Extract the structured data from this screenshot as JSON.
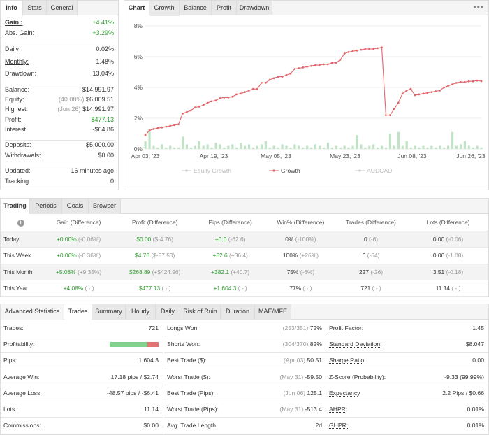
{
  "info_panel": {
    "tabs": [
      "Info",
      "Stats",
      "General"
    ],
    "rows": [
      {
        "label": "Gain :",
        "value": "+4.41%"
      },
      {
        "label": "Abs. Gain:",
        "value": "+3.29%"
      },
      {
        "label": "Daily",
        "value": "0.02%"
      },
      {
        "label": "Monthly:",
        "value": "1.48%"
      },
      {
        "label": "Drawdown:",
        "value": "13.04%"
      },
      {
        "label": "Balance:",
        "value": "$14,991.97"
      },
      {
        "label": "Equity:",
        "value_note": "(40.08%)",
        "value": "$6,009.51"
      },
      {
        "label": "Highest:",
        "value_note": "(Jun 26)",
        "value": "$14,991.97"
      },
      {
        "label": "Profit:",
        "value": "$477.13"
      },
      {
        "label": "Interest",
        "value": "-$64.86"
      },
      {
        "label": "Deposits:",
        "value": "$5,000.00"
      },
      {
        "label": "Withdrawals:",
        "value": "$0.00"
      },
      {
        "label": "Updated:",
        "value": "16 minutes ago"
      },
      {
        "label": "Tracking",
        "value": "0"
      }
    ]
  },
  "chart_panel": {
    "tabs": [
      "Chart",
      "Growth",
      "Balance",
      "Profit",
      "Drawdown"
    ],
    "menu_icon": "ellipsis-icon",
    "legend": [
      "Equity Growth",
      "Growth",
      "AUDCAD"
    ]
  },
  "chart_data": {
    "type": "line",
    "x_ticks": [
      "Apr 03, '23",
      "Apr 19, '23",
      "May 05, '23",
      "May 23, '23",
      "Jun 08, '23",
      "Jun 26, '23"
    ],
    "y_ticks": [
      "0%",
      "2%",
      "4%",
      "6%",
      "8%"
    ],
    "ylim": [
      0,
      8
    ],
    "series": [
      {
        "name": "Growth",
        "values": [
          0.9,
          1.2,
          1.3,
          1.35,
          1.4,
          1.45,
          1.5,
          1.55,
          1.6,
          2.3,
          2.4,
          2.5,
          2.7,
          2.75,
          2.85,
          3.0,
          3.1,
          3.15,
          3.3,
          3.35,
          3.35,
          3.4,
          3.55,
          3.6,
          3.7,
          3.8,
          3.9,
          3.9,
          4.3,
          4.3,
          4.5,
          4.6,
          4.7,
          4.7,
          4.8,
          4.9,
          5.2,
          5.25,
          5.3,
          5.35,
          5.4,
          5.45,
          5.45,
          5.5,
          5.5,
          5.6,
          5.6,
          5.8,
          6.2,
          6.3,
          6.35,
          6.4,
          6.45,
          6.5,
          6.5,
          6.5,
          6.55,
          6.6,
          2.2,
          2.2,
          2.6,
          3.0,
          3.6,
          3.8,
          3.9,
          3.5,
          3.55,
          3.6,
          3.65,
          3.7,
          3.75,
          3.8,
          4.0,
          4.1,
          4.2,
          4.3,
          4.35,
          4.35,
          4.4,
          4.4,
          4.45,
          4.41
        ]
      },
      {
        "name": "AUDCAD",
        "values": [
          0.5,
          1.3,
          0.2,
          0.1,
          0.3,
          0.1,
          0.2,
          0.1,
          0.1,
          0.8,
          0.3,
          0.1,
          0.2,
          0.5,
          0.2,
          0.3,
          0.1,
          0.4,
          0.3,
          0.1,
          0.2,
          0.3,
          0.1,
          0.4,
          0.2,
          0.3,
          0.1,
          0.2,
          0.3,
          0.5,
          0.1,
          0.2,
          0.1,
          0.3,
          0.2,
          0.1,
          0.3,
          0.2,
          0.1,
          0.2,
          0.1,
          0.3,
          0.2,
          0.1,
          0.4,
          0.1,
          0.2,
          0.1,
          0.2,
          0.1,
          0.2,
          0.9,
          0.3,
          0.1,
          0.2,
          0.3,
          0.1,
          0.2,
          0.1,
          1.0,
          0.2,
          1.1,
          0.2,
          0.5,
          0.1,
          0.2,
          0.1,
          0.2,
          0.1,
          0.2,
          0.1,
          0.2,
          0.1,
          0.2,
          1.1,
          0.2,
          0.3,
          0.5,
          0.2,
          0.1,
          0.2,
          0.1
        ]
      }
    ]
  },
  "periods": {
    "tabs": [
      "Trading",
      "Periods",
      "Goals",
      "Browser"
    ],
    "info_icon": "info-icon",
    "headers": [
      "Gain (Difference)",
      "Profit (Difference)",
      "Pips (Difference)",
      "Win% (Difference)",
      "Trades (Difference)",
      "Lots (Difference)"
    ],
    "rows": [
      {
        "period": "Today",
        "cells": [
          [
            "+0.00%",
            "(-0.06%)"
          ],
          [
            "$0.00",
            "($-4.76)"
          ],
          [
            "+0.0",
            "(-62.6)"
          ],
          [
            "0%",
            "(-100%)"
          ],
          [
            "0",
            "(-6)"
          ],
          [
            "0.00",
            "(-0.06)"
          ]
        ]
      },
      {
        "period": "This Week",
        "cells": [
          [
            "+0.06%",
            "(-0.36%)"
          ],
          [
            "$4.76",
            "($-87.53)"
          ],
          [
            "+62.6",
            "(+36.4)"
          ],
          [
            "100%",
            "(+26%)"
          ],
          [
            "6",
            "(-64)"
          ],
          [
            "0.06",
            "(-1.08)"
          ]
        ]
      },
      {
        "period": "This Month",
        "cells": [
          [
            "+5.08%",
            "(+9.35%)"
          ],
          [
            "$268.89",
            "(+$424.96)"
          ],
          [
            "+382.1",
            "(+40.7)"
          ],
          [
            "75%",
            "(-6%)"
          ],
          [
            "227",
            "(-26)"
          ],
          [
            "3.51",
            "(-0.18)"
          ]
        ]
      },
      {
        "period": "This Year",
        "cells": [
          [
            "+4.08%",
            "( - )"
          ],
          [
            "$477.13",
            "( - )"
          ],
          [
            "+1,604.3",
            "( - )"
          ],
          [
            "77%",
            "( - )"
          ],
          [
            "721",
            "( - )"
          ],
          [
            "11.14",
            "( - )"
          ]
        ]
      }
    ]
  },
  "advanced": {
    "tabs": [
      "Advanced Statistics",
      "Trades",
      "Summary",
      "Hourly",
      "Daily",
      "Risk of Ruin",
      "Duration",
      "MAE/MFE"
    ],
    "col1": [
      {
        "label": "Trades:",
        "value": "721"
      },
      {
        "label": "Profitability:",
        "value": ""
      },
      {
        "label": "Pips:",
        "value": "1,604.3"
      },
      {
        "label": "Average Win:",
        "value": "17.18 pips / $2.74"
      },
      {
        "label": "Average Loss:",
        "value": "-48.57 pips / -$6.41"
      },
      {
        "label": "Lots :",
        "value": "11.14"
      },
      {
        "label": "Commissions:",
        "value": "$0.00"
      }
    ],
    "profitability_pct": 77,
    "col2": [
      {
        "label": "Longs Won:",
        "note": "(253/351)",
        "value": "72%"
      },
      {
        "label": "Shorts Won:",
        "note": "(304/370)",
        "value": "82%"
      },
      {
        "label": "Best Trade ($):",
        "note": "(Apr 03)",
        "value": "50.51"
      },
      {
        "label": "Worst Trade ($):",
        "note": "(May 31)",
        "value": "-59.50"
      },
      {
        "label": "Best Trade (Pips):",
        "note": "(Jun 06)",
        "value": "125.1"
      },
      {
        "label": "Worst Trade (Pips):",
        "note": "(May 31)",
        "value": "-513.4"
      },
      {
        "label": "Avg. Trade Length:",
        "note": "",
        "value": "2d"
      }
    ],
    "col3": [
      {
        "label": "Profit Factor:",
        "value": "1.45"
      },
      {
        "label": "Standard Deviation:",
        "value": "$8.047"
      },
      {
        "label": "Sharpe Ratio",
        "value": "0.00"
      },
      {
        "label": "Z-Score (Probability):",
        "value": "-9.33 (99.99%)"
      },
      {
        "label": "Expectancy",
        "value": "2.2 Pips / $0.66"
      },
      {
        "label": "AHPR:",
        "value": "0.01%"
      },
      {
        "label": "GHPR:",
        "value": "0.01%"
      }
    ]
  }
}
